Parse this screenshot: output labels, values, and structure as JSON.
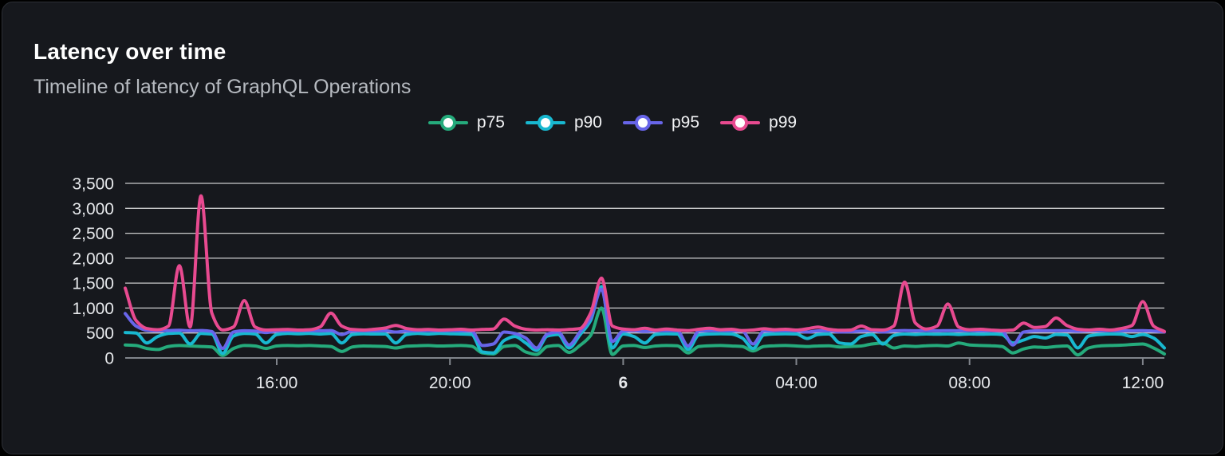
{
  "panel": {
    "title": "Latency over time",
    "subtitle": "Timeline of latency of GraphQL Operations"
  },
  "colors": {
    "page_background": "#000000",
    "card_background": "#16181d",
    "card_border": "#2c2f35",
    "title": "#ffffff",
    "subtitle": "#b6bac0",
    "grid_line": "rgba(255,255,255,0.78)",
    "axis_line": "#80848b",
    "tick_label": "#e6e8eb"
  },
  "chart_data": {
    "type": "line",
    "title": "Latency over time",
    "subtitle": "Timeline of latency of GraphQL Operations",
    "grid": true,
    "legend_position": "top-center",
    "ylim": [
      0,
      3500
    ],
    "y_ticks": {
      "values": [
        0,
        500,
        1000,
        1500,
        2000,
        2500,
        3000,
        3500
      ],
      "labels": [
        "0",
        "500",
        "1,000",
        "1,500",
        "2,000",
        "2,500",
        "3,000",
        "3,500"
      ]
    },
    "x_axis": {
      "description": "24-hour window sampled every 15 minutes (97 points), from ~12:30 through midnight (day 6) to ~12:30",
      "ticks": [
        {
          "index": 14,
          "label": "16:00",
          "bold": false
        },
        {
          "index": 30,
          "label": "20:00",
          "bold": false
        },
        {
          "index": 46,
          "label": "6",
          "bold": true
        },
        {
          "index": 62,
          "label": "04:00",
          "bold": false
        },
        {
          "index": 78,
          "label": "08:00",
          "bold": false
        },
        {
          "index": 94,
          "label": "12:00",
          "bold": false
        }
      ]
    },
    "series": [
      {
        "name": "p75",
        "color": "#25ab7c",
        "values": [
          260,
          250,
          190,
          170,
          230,
          250,
          240,
          230,
          220,
          50,
          190,
          250,
          240,
          190,
          240,
          250,
          245,
          250,
          240,
          230,
          130,
          220,
          240,
          235,
          230,
          200,
          235,
          245,
          250,
          240,
          245,
          250,
          235,
          100,
          80,
          230,
          250,
          120,
          70,
          230,
          250,
          110,
          250,
          450,
          1000,
          70,
          240,
          250,
          210,
          240,
          250,
          245,
          100,
          230,
          245,
          250,
          240,
          230,
          140,
          230,
          245,
          250,
          240,
          230,
          240,
          245,
          220,
          230,
          240,
          280,
          300,
          200,
          240,
          230,
          245,
          250,
          240,
          300,
          260,
          250,
          245,
          230,
          100,
          180,
          220,
          210,
          230,
          240,
          60,
          200,
          240,
          250,
          255,
          270,
          280,
          200,
          80
        ]
      },
      {
        "name": "p90",
        "color": "#18b8d0",
        "values": [
          510,
          500,
          300,
          430,
          490,
          500,
          280,
          490,
          480,
          90,
          440,
          490,
          480,
          300,
          470,
          490,
          485,
          490,
          480,
          490,
          300,
          470,
          485,
          480,
          480,
          300,
          470,
          490,
          480,
          490,
          485,
          480,
          470,
          120,
          100,
          350,
          430,
          300,
          150,
          440,
          470,
          200,
          460,
          750,
          1430,
          200,
          480,
          430,
          300,
          470,
          485,
          480,
          170,
          460,
          480,
          485,
          480,
          400,
          190,
          460,
          480,
          485,
          480,
          390,
          470,
          480,
          300,
          280,
          430,
          470,
          280,
          450,
          480,
          470,
          480,
          475,
          480,
          470,
          480,
          475,
          480,
          470,
          300,
          360,
          430,
          400,
          470,
          460,
          200,
          440,
          470,
          480,
          475,
          430,
          470,
          400,
          200
        ]
      },
      {
        "name": "p95",
        "color": "#6865e9",
        "values": [
          890,
          640,
          555,
          545,
          550,
          555,
          545,
          550,
          530,
          190,
          520,
          545,
          540,
          510,
          540,
          545,
          545,
          548,
          545,
          550,
          470,
          540,
          545,
          543,
          545,
          520,
          540,
          545,
          547,
          545,
          546,
          544,
          540,
          250,
          280,
          520,
          490,
          400,
          200,
          480,
          520,
          260,
          520,
          800,
          1380,
          330,
          540,
          545,
          530,
          545,
          547,
          545,
          240,
          540,
          546,
          548,
          545,
          540,
          280,
          538,
          545,
          547,
          545,
          520,
          543,
          545,
          520,
          525,
          540,
          545,
          520,
          543,
          550,
          545,
          547,
          545,
          548,
          545,
          546,
          544,
          545,
          540,
          260,
          520,
          543,
          545,
          547,
          545,
          535,
          543,
          545,
          546,
          545,
          545,
          548,
          540,
          520
        ]
      },
      {
        "name": "p99",
        "color": "#e84a90",
        "values": [
          1400,
          750,
          590,
          565,
          640,
          1850,
          620,
          3250,
          900,
          560,
          620,
          1150,
          620,
          560,
          565,
          570,
          560,
          565,
          620,
          900,
          640,
          570,
          560,
          575,
          600,
          650,
          590,
          565,
          570,
          560,
          565,
          575,
          560,
          570,
          580,
          780,
          640,
          575,
          560,
          565,
          560,
          570,
          590,
          900,
          1600,
          640,
          580,
          565,
          595,
          560,
          580,
          560,
          550,
          575,
          595,
          565,
          575,
          550,
          560,
          585,
          565,
          575,
          560,
          585,
          620,
          575,
          555,
          560,
          640,
          565,
          560,
          640,
          1520,
          700,
          580,
          640,
          1080,
          620,
          565,
          575,
          560,
          550,
          560,
          700,
          610,
          630,
          800,
          650,
          575,
          560,
          575,
          560,
          590,
          650,
          1130,
          640,
          530
        ]
      }
    ]
  }
}
